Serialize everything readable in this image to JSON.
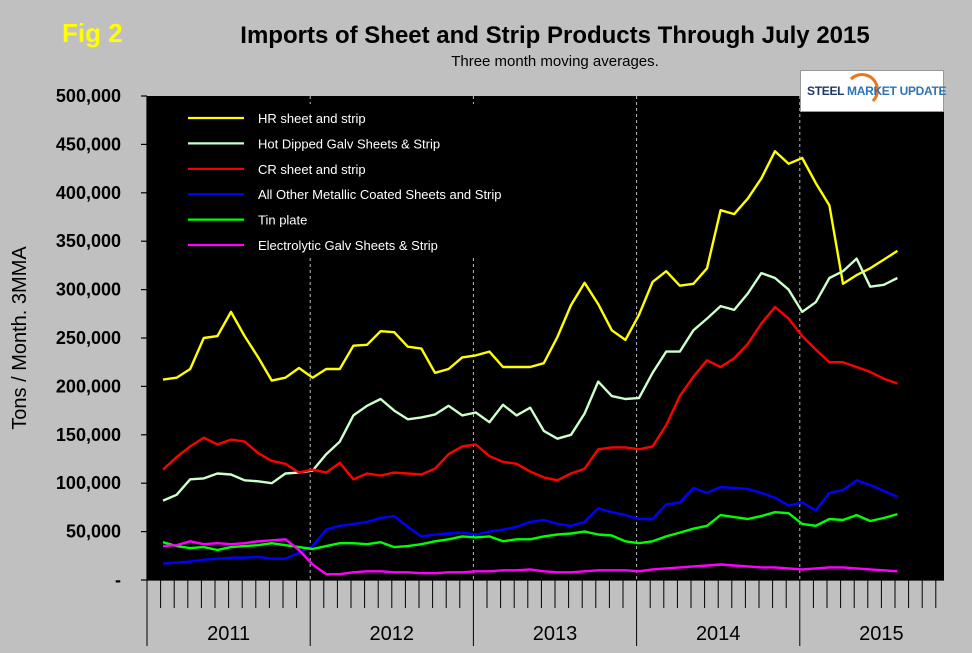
{
  "figure_label": "Fig 2",
  "logo_text_part1": "STEEL",
  "logo_text_part2": "MARKET UPDATE",
  "chart_data": {
    "type": "line",
    "title": "Imports of Sheet and Strip Products Through July 2015",
    "subtitle": "Three month moving averages.",
    "xlabel": "",
    "ylabel": "Tons / Month. 3MMA",
    "ylim": [
      0,
      500000
    ],
    "yticks": [
      0,
      50000,
      100000,
      150000,
      200000,
      250000,
      300000,
      350000,
      400000,
      450000,
      500000
    ],
    "ytick_labels": [
      "-",
      "50,000",
      "100,000",
      "150,000",
      "200,000",
      "250,000",
      "300,000",
      "350,000",
      "400,000",
      "450,000",
      "500,000"
    ],
    "x_start": "2011-01",
    "n_months_axis": 60,
    "n_points": 55,
    "year_labels": [
      "2011",
      "2012",
      "2013",
      "2014",
      "2015"
    ],
    "grid": "vertical dashed at year boundaries",
    "legend_position": "top-left inside plot",
    "background_color": "#000000",
    "series": [
      {
        "name": "HR sheet and strip",
        "color": "#ffff00",
        "values": [
          207000,
          209000,
          218000,
          250000,
          252000,
          277000,
          252000,
          230000,
          206000,
          209000,
          219000,
          209000,
          218000,
          218000,
          242000,
          243000,
          257000,
          256000,
          241000,
          239000,
          214000,
          218000,
          230000,
          232000,
          236000,
          220000,
          220000,
          220000,
          224000,
          251000,
          284000,
          307000,
          285000,
          258000,
          248000,
          274000,
          308000,
          319000,
          304000,
          306000,
          322000,
          382000,
          378000,
          394000,
          415000,
          443000,
          430000,
          436000,
          410000,
          387000,
          306000,
          315000,
          322000,
          331000,
          340000
        ]
      },
      {
        "name": "Hot Dipped Galv Sheets & Strip",
        "color": "#ccffcc",
        "values": [
          82000,
          88000,
          104000,
          105000,
          110000,
          109000,
          103000,
          102000,
          100000,
          110000,
          111000,
          113000,
          130000,
          143000,
          170000,
          180000,
          187000,
          175000,
          166000,
          168000,
          171000,
          180000,
          170000,
          173000,
          163000,
          181000,
          170000,
          178000,
          154000,
          146000,
          150000,
          172000,
          205000,
          190000,
          187000,
          188000,
          214000,
          236000,
          236000,
          258000,
          270000,
          283000,
          279000,
          296000,
          317000,
          312000,
          300000,
          277000,
          287000,
          312000,
          319000,
          332000,
          303000,
          305000,
          312000
        ]
      },
      {
        "name": "CR sheet and strip",
        "color": "#ff0000",
        "values": [
          114000,
          127000,
          138000,
          147000,
          140000,
          145000,
          143000,
          131000,
          123000,
          120000,
          111000,
          114000,
          111000,
          121000,
          104000,
          110000,
          108000,
          111000,
          110000,
          109000,
          115000,
          130000,
          138000,
          140000,
          128000,
          122000,
          120000,
          112000,
          106000,
          103000,
          110000,
          115000,
          135000,
          137000,
          137000,
          135000,
          138000,
          160000,
          190000,
          210000,
          227000,
          220000,
          229000,
          244000,
          265000,
          282000,
          270000,
          252000,
          238000,
          225000,
          225000,
          220000,
          215000,
          208000,
          203000
        ]
      },
      {
        "name": "All Other Metallic Coated Sheets and Strip",
        "color": "#0000ff",
        "values": [
          17000,
          18000,
          19000,
          21000,
          22000,
          23000,
          23000,
          24000,
          22000,
          22000,
          28000,
          35000,
          52000,
          56000,
          58000,
          60000,
          64000,
          66000,
          55000,
          45000,
          47000,
          48000,
          49000,
          47000,
          50000,
          52000,
          55000,
          60000,
          62000,
          58000,
          56000,
          60000,
          74000,
          70000,
          67000,
          63000,
          63000,
          78000,
          80000,
          95000,
          90000,
          96000,
          95000,
          94000,
          90000,
          85000,
          77000,
          80000,
          72000,
          90000,
          93000,
          103000,
          98000,
          92000,
          86000
        ]
      },
      {
        "name": "Tin plate",
        "color": "#00ff00",
        "values": [
          39000,
          35000,
          33000,
          34000,
          31000,
          34000,
          35000,
          36000,
          38000,
          36000,
          34000,
          32000,
          35000,
          38000,
          38000,
          37000,
          39000,
          34000,
          35000,
          37000,
          40000,
          42000,
          45000,
          44000,
          45000,
          40000,
          42000,
          42000,
          45000,
          47000,
          48000,
          50000,
          47000,
          46000,
          40000,
          38000,
          40000,
          45000,
          49000,
          53000,
          56000,
          67000,
          65000,
          63000,
          66000,
          70000,
          69000,
          58000,
          56000,
          63000,
          62000,
          67000,
          61000,
          64000,
          68000
        ]
      },
      {
        "name": "Electrolytic Galv Sheets & Strip",
        "color": "#ff00ff",
        "values": [
          35000,
          36000,
          40000,
          37000,
          38000,
          37000,
          38000,
          40000,
          41000,
          42000,
          31000,
          16000,
          6000,
          6000,
          8000,
          9000,
          9000,
          8000,
          8000,
          7000,
          7000,
          8000,
          8000,
          9000,
          9000,
          10000,
          10000,
          11000,
          9000,
          8000,
          8000,
          9000,
          10000,
          10000,
          10000,
          9000,
          11000,
          12000,
          13000,
          14000,
          15000,
          16000,
          15000,
          14000,
          13000,
          13000,
          12000,
          11000,
          12000,
          13000,
          13000,
          12000,
          11000,
          10000,
          9000
        ]
      }
    ]
  }
}
